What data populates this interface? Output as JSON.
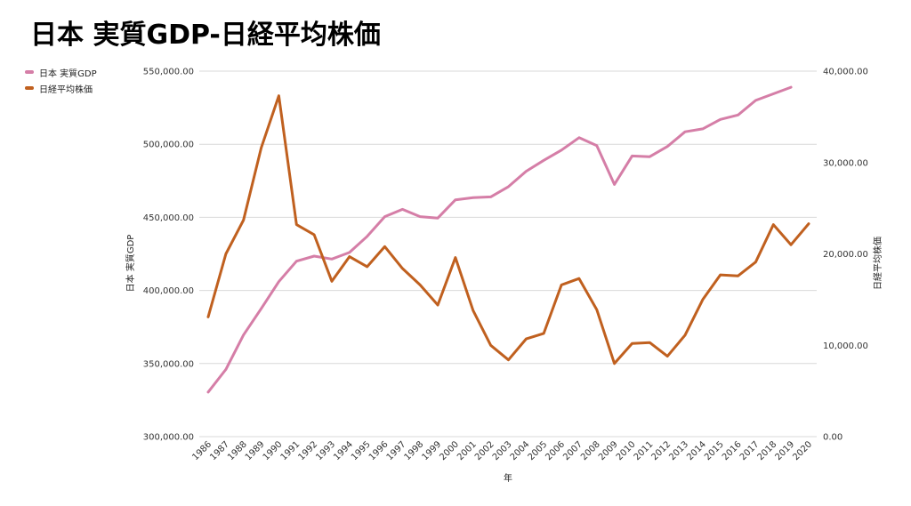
{
  "title": "日本 実質GDP-日経平均株価",
  "legend": [
    {
      "name": "日本 実質GDP",
      "color": "#d57ea7"
    },
    {
      "name": "日経平均株価",
      "color": "#c0601f"
    }
  ],
  "chart_data": {
    "type": "line",
    "title": "日本 実質GDP-日経平均株価",
    "xlabel": "年",
    "ylabel_left": "日本 実質GDP",
    "ylabel_right": "日経平均株価",
    "ylim_left": [
      300000,
      550000
    ],
    "ylim_right": [
      0,
      40000
    ],
    "yticks_left": [
      "300,000.00",
      "350,000.00",
      "400,000.00",
      "450,000.00",
      "500,000.00",
      "550,000.00"
    ],
    "yticks_right": [
      "0.00",
      "10,000.00",
      "20,000.00",
      "30,000.00",
      "40,000.00"
    ],
    "grid": true,
    "legend_position": "top-left",
    "categories": [
      "1986",
      "1987",
      "1988",
      "1989",
      "1990",
      "1991",
      "1992",
      "1993",
      "1994",
      "1995",
      "1996",
      "1997",
      "1998",
      "1999",
      "2000",
      "2001",
      "2002",
      "2003",
      "2004",
      "2005",
      "2006",
      "2007",
      "2008",
      "2009",
      "2010",
      "2011",
      "2012",
      "2013",
      "2014",
      "2015",
      "2016",
      "2017",
      "2018",
      "2019",
      "2020"
    ],
    "series": [
      {
        "name": "日本 実質GDP",
        "axis": "left",
        "color": "#d57ea7",
        "values": [
          330500,
          346000,
          369500,
          387500,
          406000,
          420000,
          423500,
          421500,
          426000,
          437000,
          450500,
          455500,
          450500,
          449500,
          462000,
          463500,
          464000,
          471000,
          481500,
          489000,
          496000,
          504500,
          499000,
          472500,
          492000,
          491500,
          498500,
          508500,
          510500,
          517000,
          520000,
          530000,
          534500,
          539000,
          null
        ]
      },
      {
        "name": "日経平均株価",
        "axis": "right",
        "color": "#c0601f",
        "values": [
          13100,
          20000,
          23700,
          31600,
          37300,
          23200,
          22100,
          17000,
          19700,
          18600,
          20800,
          18400,
          16600,
          14400,
          19600,
          13800,
          10000,
          8400,
          10700,
          11300,
          16600,
          17300,
          13900,
          8000,
          10200,
          10300,
          8800,
          11100,
          15000,
          17700,
          17600,
          19100,
          23200,
          21000,
          23300
        ]
      }
    ]
  }
}
